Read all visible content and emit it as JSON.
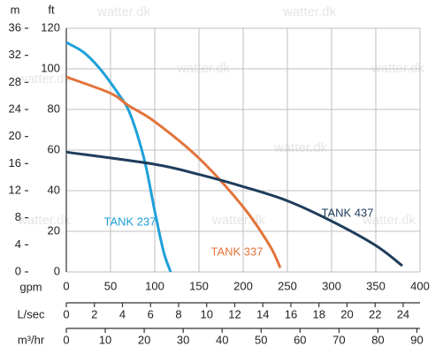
{
  "chart_data": {
    "type": "line",
    "watermark": "watter.dk",
    "ylabel": "ft",
    "ylim": [
      0,
      120
    ],
    "yticks": [
      0,
      20,
      40,
      60,
      80,
      100,
      120
    ],
    "y2label": "m",
    "y2lim": [
      0,
      36
    ],
    "y2ticks": [
      0,
      4,
      8,
      12,
      16,
      20,
      24,
      28,
      32,
      36
    ],
    "xlabel": "gpm",
    "xlim": [
      0,
      400
    ],
    "xticks": [
      0,
      50,
      100,
      150,
      200,
      250,
      300,
      350,
      400
    ],
    "x2label": "L/sec",
    "x2lim": [
      0,
      25.2
    ],
    "x2ticks": [
      0,
      2,
      4,
      6,
      8,
      10,
      12,
      14,
      16,
      18,
      20,
      22,
      24
    ],
    "x3label": "m³/hr",
    "x3lim": [
      0,
      90.8
    ],
    "x3ticks": [
      0,
      10,
      20,
      30,
      40,
      50,
      60,
      70,
      80,
      90
    ],
    "grid": true,
    "series": [
      {
        "name": "TANK 237",
        "color": "#1ea0da",
        "x": [
          0,
          20,
          40,
          60,
          70,
          80,
          90,
          100,
          110,
          118
        ],
        "values": [
          113,
          108,
          99,
          87,
          80,
          68,
          52,
          30,
          10,
          0
        ]
      },
      {
        "name": "TANK 337",
        "color": "#e2743a",
        "x": [
          0,
          50,
          70,
          100,
          150,
          200,
          230,
          242
        ],
        "values": [
          96,
          88,
          82,
          74,
          56,
          32,
          13,
          2
        ]
      },
      {
        "name": "TANK 437",
        "color": "#1f3d5c",
        "x": [
          0,
          100,
          150,
          200,
          250,
          300,
          350,
          380
        ],
        "values": [
          59,
          53,
          48,
          42,
          35,
          25,
          13,
          3
        ]
      }
    ]
  }
}
